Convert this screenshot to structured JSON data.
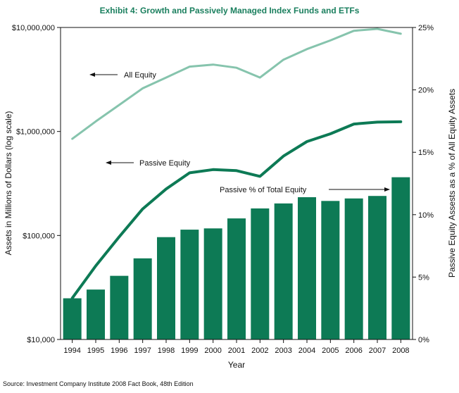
{
  "chart_data": {
    "type": "bar",
    "title": "Exhibit 4: Growth and Passively Managed Index Funds and ETFs",
    "xlabel": "Year",
    "ylabel_left": "Assets in Millions of Dollars (log scale)",
    "ylabel_right": "Passive Equity Assests as a % of All Equity Assets",
    "source": "Source: Investment Company Institute 2008 Fact Book, 48th Edition",
    "categories": [
      "1994",
      "1995",
      "1996",
      "1997",
      "1998",
      "1999",
      "2000",
      "2001",
      "2002",
      "2003",
      "2004",
      "2005",
      "2006",
      "2007",
      "2008"
    ],
    "left_axis": {
      "scale": "log",
      "ylim": [
        10000,
        10000000
      ],
      "ticks": [
        10000,
        100000,
        1000000,
        10000000
      ],
      "tick_labels": [
        "$10,000",
        "$100,000",
        "$1,000,000",
        "$10,000,000"
      ]
    },
    "right_axis": {
      "scale": "linear",
      "ylim": [
        0,
        25
      ],
      "ticks": [
        0,
        5,
        10,
        15,
        20,
        25
      ],
      "tick_labels": [
        "0%",
        "5%",
        "10%",
        "15%",
        "20%",
        "25%"
      ]
    },
    "series": [
      {
        "name": "All Equity",
        "kind": "line",
        "axis": "left",
        "color": "#86c4ad",
        "values": [
          850000,
          1250000,
          1800000,
          2600000,
          3300000,
          4200000,
          4400000,
          4100000,
          3300000,
          4900000,
          6200000,
          7500000,
          9300000,
          9700000,
          8700000
        ]
      },
      {
        "name": "Passive Equity",
        "kind": "line",
        "axis": "left",
        "color": "#0d7a55",
        "values": [
          25000,
          51000,
          97000,
          180000,
          280000,
          400000,
          430000,
          420000,
          370000,
          580000,
          800000,
          950000,
          1180000,
          1230000,
          1240000
        ]
      },
      {
        "name": "Passive % of Total Equity",
        "kind": "bar",
        "axis": "right",
        "color": "#0d7a55",
        "values": [
          3.3,
          4.0,
          5.1,
          6.5,
          8.2,
          8.8,
          8.9,
          9.7,
          10.5,
          10.9,
          11.4,
          11.1,
          11.3,
          11.5,
          13.0
        ]
      }
    ],
    "annotations": [
      {
        "text": "All Equity",
        "arrow": "left"
      },
      {
        "text": "Passive Equity",
        "arrow": "left"
      },
      {
        "text": "Passive % of Total Equity",
        "arrow": "right"
      }
    ],
    "grid": false
  }
}
